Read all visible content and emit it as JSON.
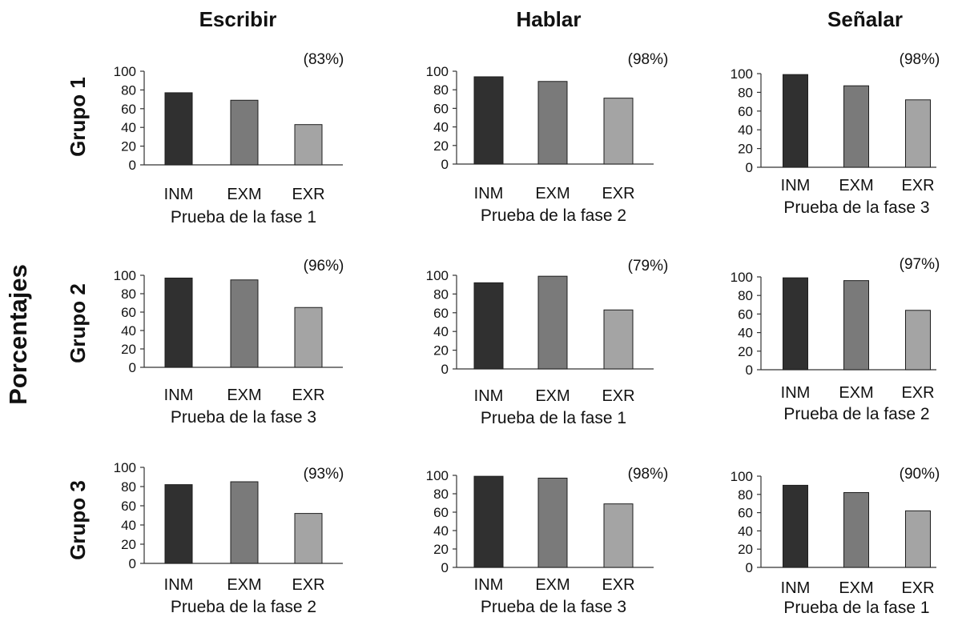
{
  "figure": {
    "y_axis_title": "Porcentajes",
    "columns": [
      "Escribir",
      "Hablar",
      "Señalar"
    ],
    "rows": [
      "Grupo 1",
      "Grupo 2",
      "Grupo 3"
    ]
  },
  "colors": {
    "INM": "#303030",
    "EXM": "#7a7a7a",
    "EXR": "#a4a4a4",
    "axis": "#333333",
    "bar_edge": "#1e1e1e"
  },
  "chart_data": [
    {
      "type": "bar",
      "row": "Grupo 1",
      "column": "Escribir",
      "categories": [
        "INM",
        "EXM",
        "EXR"
      ],
      "values": [
        77,
        69,
        43
      ],
      "xlabel": "Prueba de la fase 1",
      "annotation": "(83%)",
      "ylim": [
        0,
        100
      ],
      "yticks": [
        0,
        20,
        40,
        60,
        80,
        100
      ]
    },
    {
      "type": "bar",
      "row": "Grupo 1",
      "column": "Hablar",
      "categories": [
        "INM",
        "EXM",
        "EXR"
      ],
      "values": [
        94,
        89,
        71
      ],
      "xlabel": "Prueba de la fase 2",
      "annotation": "(98%)",
      "ylim": [
        0,
        100
      ],
      "yticks": [
        0,
        20,
        40,
        60,
        80,
        100
      ]
    },
    {
      "type": "bar",
      "row": "Grupo 1",
      "column": "Señalar",
      "categories": [
        "INM",
        "EXM",
        "EXR"
      ],
      "values": [
        99,
        87,
        72
      ],
      "xlabel": "Prueba de la fase 3",
      "annotation": "(98%)",
      "ylim": [
        0,
        100
      ],
      "yticks": [
        0,
        20,
        40,
        60,
        80,
        100
      ]
    },
    {
      "type": "bar",
      "row": "Grupo 2",
      "column": "Escribir",
      "categories": [
        "INM",
        "EXM",
        "EXR"
      ],
      "values": [
        97,
        95,
        65
      ],
      "xlabel": "Prueba de la fase 3",
      "annotation": "(96%)",
      "ylim": [
        0,
        100
      ],
      "yticks": [
        0,
        20,
        40,
        60,
        80,
        100
      ]
    },
    {
      "type": "bar",
      "row": "Grupo 2",
      "column": "Hablar",
      "categories": [
        "INM",
        "EXM",
        "EXR"
      ],
      "values": [
        92,
        99,
        63
      ],
      "xlabel": "Prueba de la fase 1",
      "annotation": "(79%)",
      "ylim": [
        0,
        100
      ],
      "yticks": [
        0,
        20,
        40,
        60,
        80,
        100
      ]
    },
    {
      "type": "bar",
      "row": "Grupo 2",
      "column": "Señalar",
      "categories": [
        "INM",
        "EXM",
        "EXR"
      ],
      "values": [
        99,
        96,
        64
      ],
      "xlabel": "Prueba de la fase 2",
      "annotation": "(97%)",
      "ylim": [
        0,
        100
      ],
      "yticks": [
        0,
        20,
        40,
        60,
        80,
        100
      ]
    },
    {
      "type": "bar",
      "row": "Grupo 3",
      "column": "Escribir",
      "categories": [
        "INM",
        "EXM",
        "EXR"
      ],
      "values": [
        82,
        85,
        52
      ],
      "xlabel": "Prueba de la fase 2",
      "annotation": "(93%)",
      "ylim": [
        0,
        100
      ],
      "yticks": [
        0,
        20,
        40,
        60,
        80,
        100
      ]
    },
    {
      "type": "bar",
      "row": "Grupo 3",
      "column": "Hablar",
      "categories": [
        "INM",
        "EXM",
        "EXR"
      ],
      "values": [
        99,
        97,
        69
      ],
      "xlabel": "Prueba de la fase 3",
      "annotation": "(98%)",
      "ylim": [
        0,
        100
      ],
      "yticks": [
        0,
        20,
        40,
        60,
        80,
        100
      ]
    },
    {
      "type": "bar",
      "row": "Grupo 3",
      "column": "Señalar",
      "categories": [
        "INM",
        "EXM",
        "EXR"
      ],
      "values": [
        90,
        82,
        62
      ],
      "xlabel": "Prueba de la fase 1",
      "annotation": "(90%)",
      "ylim": [
        0,
        100
      ],
      "yticks": [
        0,
        20,
        40,
        60,
        80,
        100
      ]
    }
  ]
}
